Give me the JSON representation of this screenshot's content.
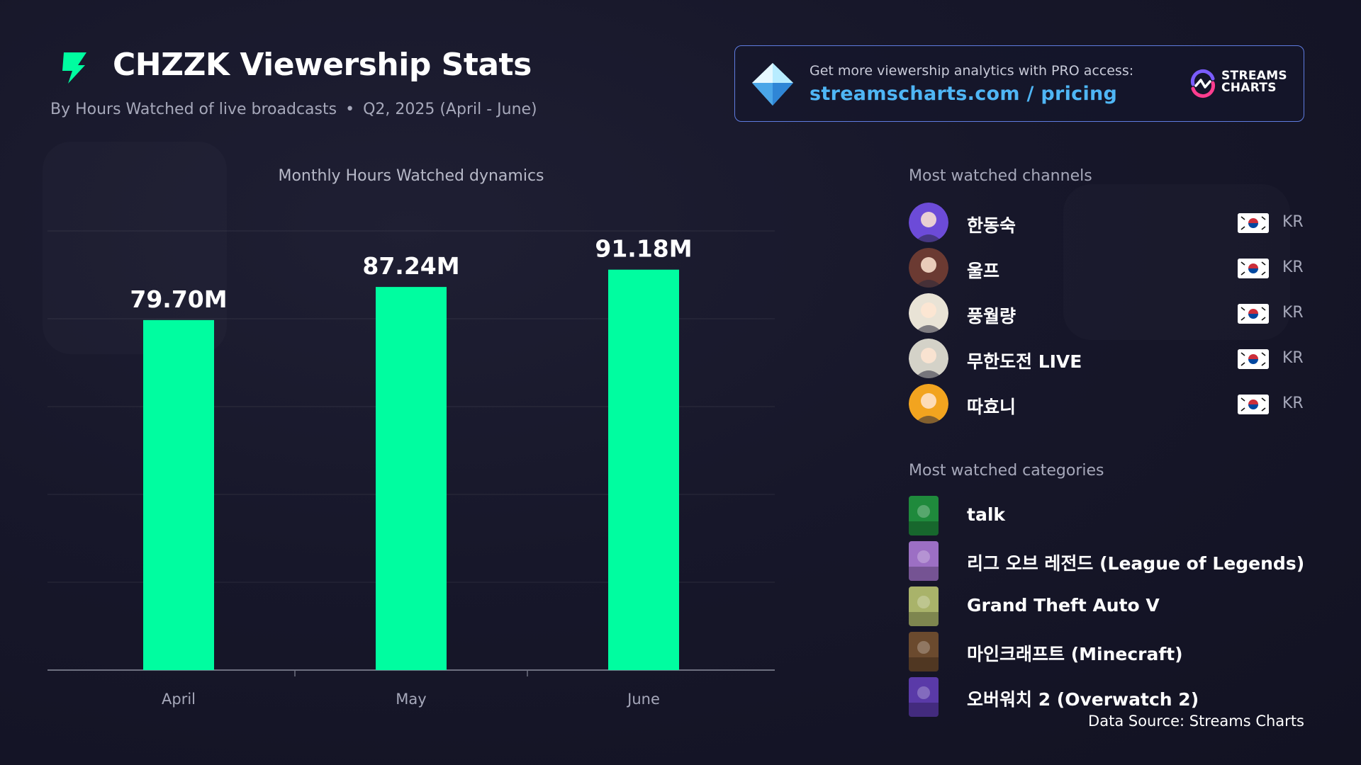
{
  "header": {
    "title": "CHZZK Viewership Stats",
    "subtitle_part1": "By Hours Watched of live broadcasts",
    "subtitle_dot": "•",
    "subtitle_part2": "Q2, 2025 (April - June)"
  },
  "promo": {
    "text": "Get more viewership analytics with PRO access:",
    "link": "streamscharts.com / pricing",
    "brand_line1": "STREAMS",
    "brand_line2": "CHARTS"
  },
  "chart_data": {
    "type": "bar",
    "title": "Monthly Hours Watched dynamics",
    "categories": [
      "April",
      "May",
      "June"
    ],
    "values": [
      79.7,
      87.24,
      91.18
    ],
    "value_labels": [
      "79.70M",
      "87.24M",
      "91.18M"
    ],
    "unit": "M",
    "ylim": [
      0,
      100
    ],
    "grid": true,
    "bar_color": "#00fda0"
  },
  "channels": {
    "title": "Most watched channels",
    "items": [
      {
        "name": "한동숙",
        "country": "KR",
        "avatar_color": "#6c4bd8"
      },
      {
        "name": "울프",
        "country": "KR",
        "avatar_color": "#6b3a32"
      },
      {
        "name": "풍월량",
        "country": "KR",
        "avatar_color": "#e9e3d6"
      },
      {
        "name": "무한도전 LIVE",
        "country": "KR",
        "avatar_color": "#d4d2c8"
      },
      {
        "name": "따효니",
        "country": "KR",
        "avatar_color": "#f2a41f"
      }
    ]
  },
  "categories": {
    "title": "Most watched categories",
    "items": [
      {
        "name": "talk",
        "cover_color": "#1f8a3c"
      },
      {
        "name": "리그 오브 레전드 (League of Legends)",
        "cover_color": "#9c6fc4"
      },
      {
        "name": "Grand Theft Auto V",
        "cover_color": "#a9b36a"
      },
      {
        "name": "마인크래프트 (Minecraft)",
        "cover_color": "#6b4a2e"
      },
      {
        "name": "오버워치 2 (Overwatch 2)",
        "cover_color": "#5a3aa8"
      }
    ]
  },
  "footer": {
    "source": "Data Source: Streams Charts"
  },
  "colors": {
    "accent": "#00fda0",
    "link": "#4fb6f5",
    "background": "#17172a"
  }
}
